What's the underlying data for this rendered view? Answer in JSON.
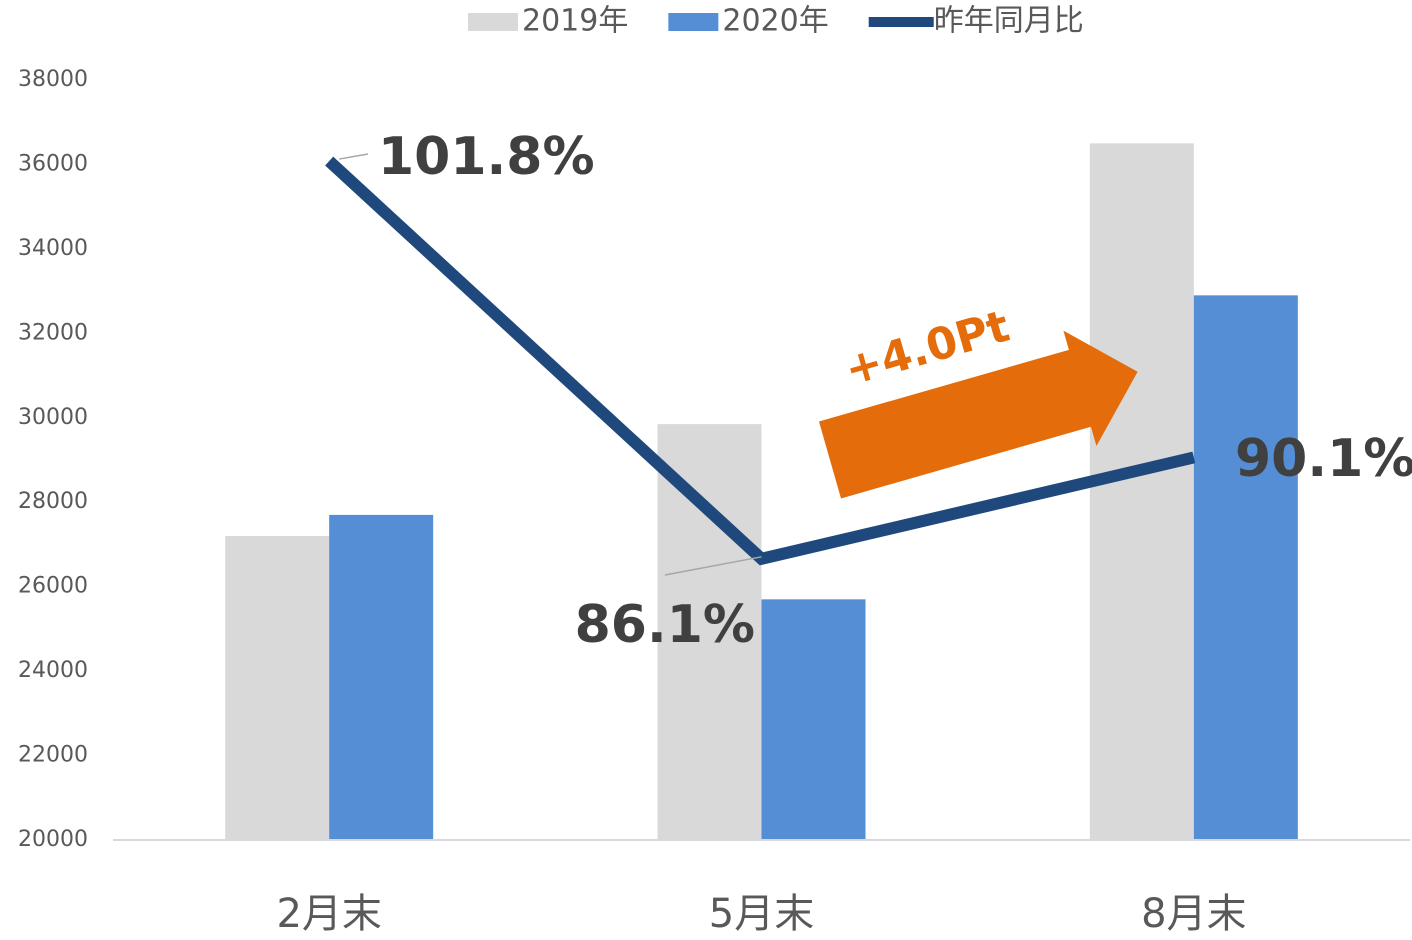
{
  "chart_data": {
    "type": "bar",
    "categories": [
      "2月末",
      "5月末",
      "8月末"
    ],
    "series": [
      {
        "name": "2019年",
        "type": "bar",
        "color": "#d9d9d9",
        "values": [
          27200,
          29850,
          36500
        ]
      },
      {
        "name": "2020年",
        "type": "bar",
        "color": "#558ed5",
        "values": [
          27700,
          25700,
          32900
        ]
      },
      {
        "name": "昨年同月比",
        "type": "line",
        "axis": "y2",
        "color": "#1f497d",
        "values": [
          101.8,
          86.1,
          90.1
        ],
        "value_labels": [
          "101.8%",
          "86.1%",
          "90.1%"
        ]
      }
    ],
    "ylim": [
      20000,
      38000
    ],
    "yticks": [
      20000,
      22000,
      24000,
      26000,
      28000,
      30000,
      32000,
      34000,
      36000,
      38000
    ],
    "y2lim": [
      75,
      105
    ],
    "annotations": [
      "+4.0Pt"
    ],
    "legend": "top",
    "grid": false
  }
}
